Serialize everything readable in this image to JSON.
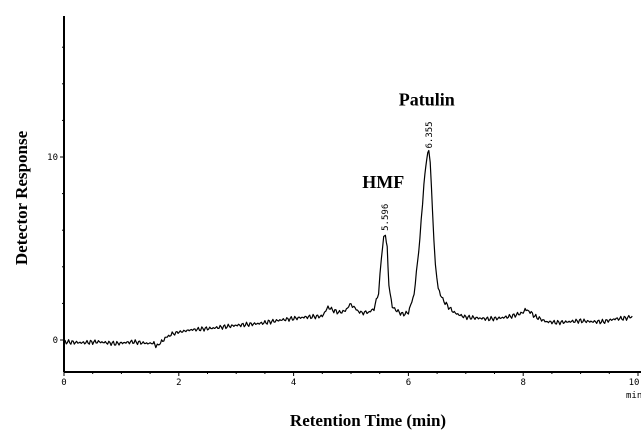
{
  "chart_data": {
    "type": "line",
    "title": "",
    "xlabel": "Retention Time (min)",
    "ylabel": "Detector Response",
    "x_unit": "min",
    "xlim": [
      0,
      10
    ],
    "ylim": [
      -1.8,
      17
    ],
    "x_ticks": [
      0,
      2,
      4,
      6,
      8,
      10
    ],
    "y_ticks": [
      0,
      10
    ],
    "grid": false,
    "series": [
      {
        "x": [
          0,
          0.3,
          0.6,
          0.9,
          1.2,
          1.5,
          1.55,
          1.6,
          1.65,
          1.7,
          1.8,
          1.95,
          2.2,
          2.6,
          3.0,
          3.4,
          3.8,
          4.2,
          4.5,
          4.6,
          4.7,
          4.8,
          4.9,
          5.0,
          5.05,
          5.15,
          5.3,
          5.4,
          5.48,
          5.53,
          5.57,
          5.6,
          5.63,
          5.66,
          5.72,
          5.8,
          5.9,
          6.0,
          6.1,
          6.2,
          6.27,
          6.32,
          6.355,
          6.38,
          6.42,
          6.47,
          6.52,
          6.6,
          6.7,
          6.8,
          6.9,
          7.0,
          7.2,
          7.4,
          7.6,
          7.8,
          8.0,
          8.05,
          8.1,
          8.2,
          8.3,
          8.4,
          8.6,
          8.8,
          9.0,
          9.2,
          9.4,
          9.6,
          9.8,
          9.9
        ],
        "y": [
          -0.1,
          -0.15,
          -0.1,
          -0.2,
          -0.1,
          -0.2,
          -0.15,
          -0.3,
          -0.25,
          -0.1,
          0.2,
          0.4,
          0.55,
          0.65,
          0.8,
          0.9,
          1.1,
          1.25,
          1.3,
          1.8,
          1.6,
          1.5,
          1.6,
          2.0,
          1.8,
          1.5,
          1.5,
          1.7,
          2.6,
          4.5,
          5.6,
          5.8,
          5.0,
          3.0,
          1.8,
          1.6,
          1.4,
          1.5,
          2.5,
          5.5,
          8.5,
          10.0,
          10.3,
          9.8,
          7.0,
          4.0,
          2.8,
          2.2,
          1.8,
          1.5,
          1.35,
          1.25,
          1.2,
          1.15,
          1.2,
          1.3,
          1.5,
          1.7,
          1.6,
          1.3,
          1.15,
          1.0,
          0.95,
          1.0,
          1.05,
          1.0,
          1.0,
          1.15,
          1.2,
          1.3
        ]
      }
    ],
    "peaks": [
      {
        "name": "HMF",
        "rt": "5.596",
        "x": 5.596,
        "y": 5.8
      },
      {
        "name": "Patulin",
        "rt": "6.355",
        "x": 6.355,
        "y": 10.3
      }
    ]
  }
}
